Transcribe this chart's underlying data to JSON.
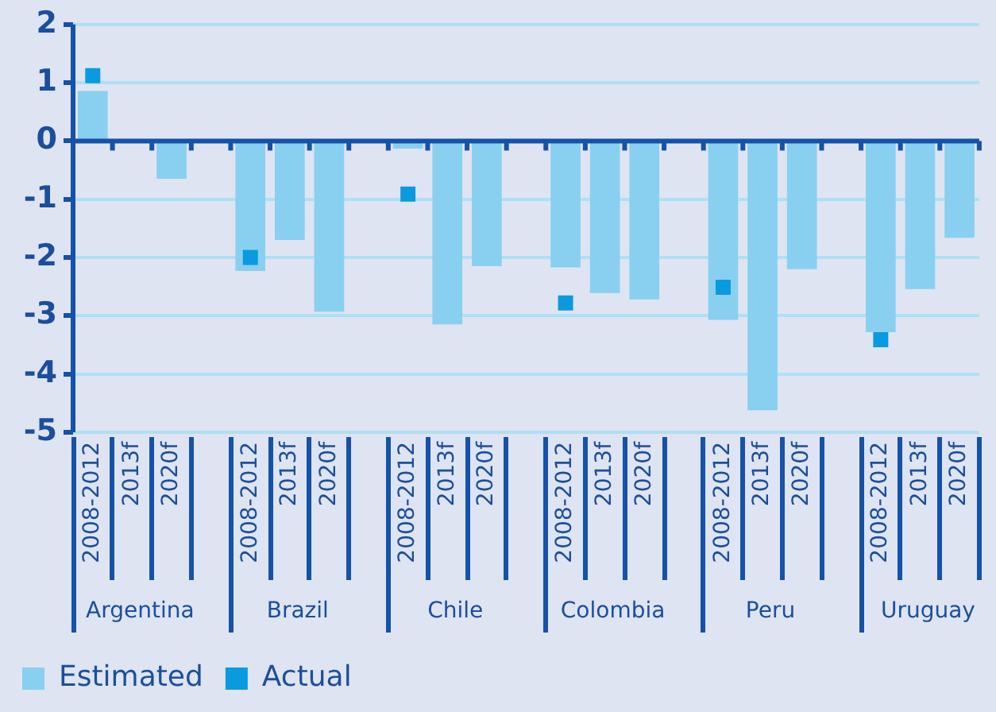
{
  "chart_data": {
    "type": "bar",
    "categories": [
      "2008-2012",
      "2013f",
      "2020f",
      null,
      "2008-2012",
      "2013f",
      "2020f",
      null,
      "2008-2012",
      "2013f",
      "2020f",
      null,
      "2008-2012",
      "2013f",
      "2020f",
      null,
      "2008-2012",
      "2013f",
      "2020f",
      null,
      "2008-2012",
      "2013f",
      "2020f"
    ],
    "series": [
      {
        "name": "Estimated",
        "color": "#89d0f0",
        "values": [
          0.86,
          null,
          -0.65,
          null,
          -2.23,
          -1.7,
          -2.93,
          null,
          -0.13,
          -3.15,
          -2.15,
          null,
          -2.17,
          -2.61,
          -2.72,
          null,
          -3.07,
          -4.62,
          -2.2,
          null,
          -3.28,
          -2.54,
          -1.66
        ]
      },
      {
        "name": "Actual",
        "type": "scatter",
        "color": "#0a9ae0",
        "values": [
          1.12,
          null,
          null,
          null,
          -2.0,
          null,
          null,
          null,
          -0.91,
          null,
          null,
          null,
          -2.78,
          null,
          null,
          null,
          -2.51,
          null,
          null,
          null,
          -3.41,
          null,
          null
        ]
      }
    ],
    "ylim": [
      -5,
      2
    ],
    "yticks": [
      -5,
      -4,
      -3,
      -2,
      -1,
      0,
      1,
      2
    ],
    "ref_lines": [
      {
        "axis": "y",
        "value": 0,
        "color": "#1552a8"
      }
    ],
    "grid": "y",
    "legend": "bottom left",
    "marker": "square",
    "annotations": [
      "Argentina",
      "Brazil",
      "Chile",
      "Colombia",
      "Peru",
      "Uruguay"
    ]
  }
}
